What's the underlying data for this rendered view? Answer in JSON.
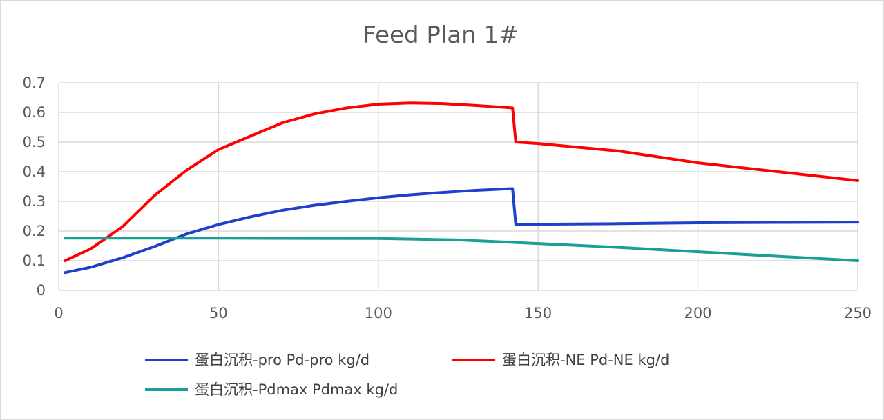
{
  "chart_data": {
    "type": "line",
    "title": "Feed Plan 1#",
    "xlim": [
      0,
      250
    ],
    "ylim": [
      0,
      0.7
    ],
    "x_ticks": [
      0,
      50,
      100,
      150,
      200,
      250
    ],
    "y_ticks": [
      0,
      0.1,
      0.2,
      0.3,
      0.4,
      0.5,
      0.6,
      0.7
    ],
    "x_tick_labels": [
      "0",
      "50",
      "100",
      "150",
      "200",
      "250"
    ],
    "y_tick_labels": [
      "0",
      "0.1",
      "0.2",
      "0.3",
      "0.4",
      "0.5",
      "0.6",
      "0.7"
    ],
    "grid": true,
    "legend_position": "bottom",
    "series": [
      {
        "name": "蛋白沉积-pro Pd-pro kg/d",
        "color": "#1f3fcc",
        "points": [
          [
            2,
            0.06
          ],
          [
            10,
            0.078
          ],
          [
            20,
            0.11
          ],
          [
            30,
            0.148
          ],
          [
            40,
            0.19
          ],
          [
            50,
            0.222
          ],
          [
            60,
            0.248
          ],
          [
            70,
            0.27
          ],
          [
            80,
            0.287
          ],
          [
            90,
            0.3
          ],
          [
            100,
            0.312
          ],
          [
            110,
            0.322
          ],
          [
            120,
            0.33
          ],
          [
            130,
            0.337
          ],
          [
            140,
            0.342
          ],
          [
            142,
            0.343
          ],
          [
            143,
            0.222
          ],
          [
            150,
            0.223
          ],
          [
            175,
            0.225
          ],
          [
            200,
            0.228
          ],
          [
            225,
            0.229
          ],
          [
            250,
            0.23
          ]
        ]
      },
      {
        "name": "蛋白沉积-NE Pd-NE kg/d",
        "color": "#ff0000",
        "points": [
          [
            2,
            0.1
          ],
          [
            10,
            0.14
          ],
          [
            20,
            0.215
          ],
          [
            30,
            0.32
          ],
          [
            40,
            0.405
          ],
          [
            50,
            0.475
          ],
          [
            60,
            0.52
          ],
          [
            70,
            0.565
          ],
          [
            80,
            0.595
          ],
          [
            90,
            0.615
          ],
          [
            100,
            0.628
          ],
          [
            110,
            0.632
          ],
          [
            120,
            0.63
          ],
          [
            130,
            0.624
          ],
          [
            140,
            0.617
          ],
          [
            142,
            0.615
          ],
          [
            143,
            0.5
          ],
          [
            150,
            0.495
          ],
          [
            175,
            0.47
          ],
          [
            200,
            0.43
          ],
          [
            225,
            0.4
          ],
          [
            250,
            0.37
          ]
        ]
      },
      {
        "name": "蛋白沉积-Pdmax Pdmax kg/d",
        "color": "#1a9e96",
        "points": [
          [
            2,
            0.176
          ],
          [
            50,
            0.176
          ],
          [
            100,
            0.175
          ],
          [
            125,
            0.17
          ],
          [
            150,
            0.158
          ],
          [
            175,
            0.145
          ],
          [
            200,
            0.13
          ],
          [
            225,
            0.115
          ],
          [
            250,
            0.1
          ]
        ]
      }
    ]
  }
}
